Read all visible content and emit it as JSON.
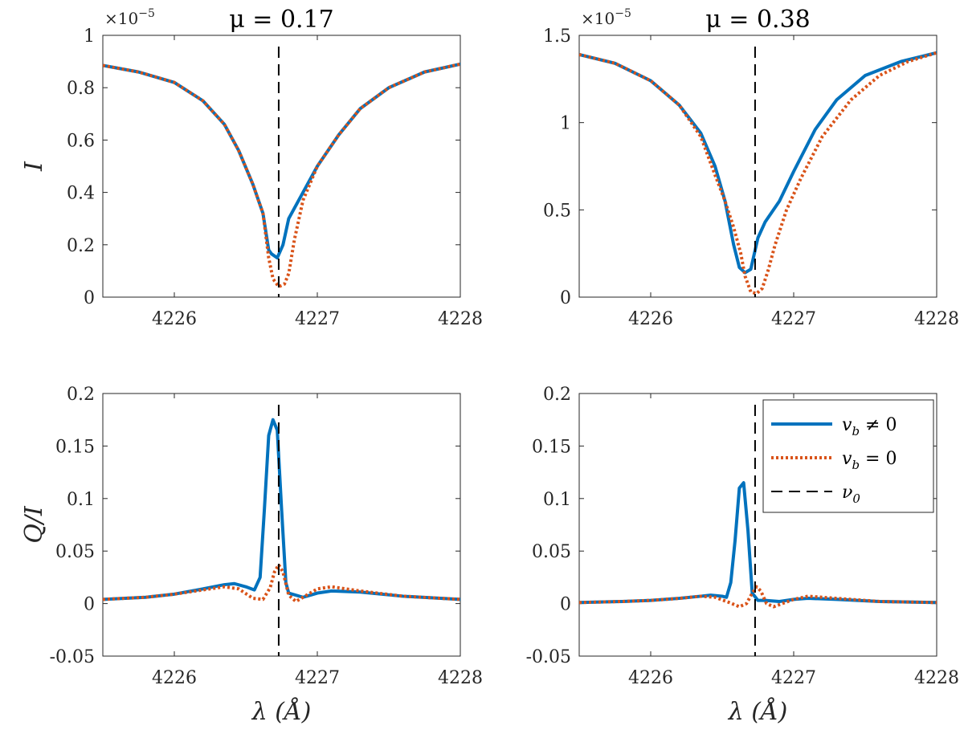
{
  "chart_data": [
    {
      "id": "I_mu017",
      "type": "line",
      "title": "μ = 0.17",
      "ylabel": "I",
      "xlabel": "",
      "multiplier": "×10",
      "multiplier_exp": "−5",
      "xlim": [
        4225.5,
        4228
      ],
      "ylim": [
        0,
        1
      ],
      "xticks": [
        4226,
        4227,
        4228
      ],
      "xticklabels": [
        "4226",
        "4227",
        "4228"
      ],
      "yticks": [
        0,
        0.2,
        0.4,
        0.6,
        0.8,
        1
      ],
      "yticklabels": [
        "0",
        "0.2",
        "0.4",
        "0.6",
        "0.8",
        "1"
      ],
      "vline": 4226.73,
      "series": [
        {
          "key": "vb_nonzero",
          "color": "#0072BD",
          "style": "solid",
          "x": [
            4225.5,
            4225.75,
            4226.0,
            4226.2,
            4226.35,
            4226.45,
            4226.55,
            4226.62,
            4226.66,
            4226.68,
            4226.72,
            4226.76,
            4226.8,
            4226.9,
            4227.0,
            4227.15,
            4227.3,
            4227.5,
            4227.75,
            4228.0
          ],
          "y": [
            0.885,
            0.86,
            0.82,
            0.75,
            0.66,
            0.56,
            0.43,
            0.32,
            0.18,
            0.165,
            0.15,
            0.2,
            0.3,
            0.4,
            0.5,
            0.62,
            0.72,
            0.8,
            0.86,
            0.89
          ]
        },
        {
          "key": "vb_zero",
          "color": "#D95319",
          "style": "dotted",
          "x": [
            4225.5,
            4225.75,
            4226.0,
            4226.2,
            4226.35,
            4226.45,
            4226.55,
            4226.62,
            4226.66,
            4226.69,
            4226.73,
            4226.77,
            4226.8,
            4226.84,
            4226.9,
            4227.0,
            4227.15,
            4227.3,
            4227.5,
            4227.75,
            4228.0
          ],
          "y": [
            0.885,
            0.86,
            0.82,
            0.75,
            0.66,
            0.56,
            0.43,
            0.32,
            0.15,
            0.07,
            0.04,
            0.05,
            0.09,
            0.22,
            0.37,
            0.5,
            0.62,
            0.72,
            0.8,
            0.86,
            0.89
          ]
        }
      ]
    },
    {
      "id": "I_mu038",
      "type": "line",
      "title": "μ = 0.38",
      "ylabel": "",
      "xlabel": "",
      "multiplier": "×10",
      "multiplier_exp": "−5",
      "xlim": [
        4225.5,
        4228
      ],
      "ylim": [
        0,
        1.5
      ],
      "xticks": [
        4226,
        4227,
        4228
      ],
      "xticklabels": [
        "4226",
        "4227",
        "4228"
      ],
      "yticks": [
        0,
        0.5,
        1,
        1.5
      ],
      "yticklabels": [
        "0",
        "0.5",
        "1",
        "1.5"
      ],
      "vline": 4226.73,
      "series": [
        {
          "key": "vb_nonzero",
          "color": "#0072BD",
          "style": "solid",
          "x": [
            4225.5,
            4225.75,
            4226.0,
            4226.2,
            4226.35,
            4226.45,
            4226.52,
            4226.58,
            4226.62,
            4226.66,
            4226.7,
            4226.75,
            4226.8,
            4226.9,
            4227.0,
            4227.15,
            4227.3,
            4227.5,
            4227.75,
            4228.0
          ],
          "y": [
            1.39,
            1.34,
            1.24,
            1.1,
            0.94,
            0.75,
            0.55,
            0.3,
            0.17,
            0.14,
            0.16,
            0.34,
            0.43,
            0.55,
            0.72,
            0.96,
            1.13,
            1.27,
            1.35,
            1.4
          ]
        },
        {
          "key": "vb_zero",
          "color": "#D95319",
          "style": "dotted",
          "x": [
            4225.5,
            4225.75,
            4226.0,
            4226.2,
            4226.35,
            4226.45,
            4226.52,
            4226.58,
            4226.63,
            4226.66,
            4226.7,
            4226.74,
            4226.78,
            4226.82,
            4226.87,
            4226.95,
            4227.05,
            4227.2,
            4227.4,
            4227.6,
            4227.8,
            4228.0
          ],
          "y": [
            1.39,
            1.34,
            1.24,
            1.1,
            0.92,
            0.7,
            0.55,
            0.4,
            0.25,
            0.12,
            0.03,
            0.02,
            0.05,
            0.15,
            0.3,
            0.5,
            0.68,
            0.92,
            1.13,
            1.27,
            1.35,
            1.4
          ]
        }
      ]
    },
    {
      "id": "QI_mu017",
      "type": "line",
      "title": "",
      "ylabel": "Q/I",
      "xlabel": "λ (Å)",
      "xlim": [
        4225.5,
        4228
      ],
      "ylim": [
        -0.05,
        0.2
      ],
      "xticks": [
        4226,
        4227,
        4228
      ],
      "xticklabels": [
        "4226",
        "4227",
        "4228"
      ],
      "yticks": [
        -0.05,
        0,
        0.05,
        0.1,
        0.15,
        0.2
      ],
      "yticklabels": [
        "-0.05",
        "0",
        "0.05",
        "0.1",
        "0.15",
        "0.2"
      ],
      "vline": 4226.73,
      "series": [
        {
          "key": "vb_nonzero",
          "color": "#0072BD",
          "style": "solid",
          "x": [
            4225.5,
            4225.8,
            4226.0,
            4226.2,
            4226.35,
            4226.42,
            4226.5,
            4226.56,
            4226.6,
            4226.63,
            4226.66,
            4226.69,
            4226.72,
            4226.75,
            4226.78,
            4226.8,
            4226.85,
            4226.9,
            4227.0,
            4227.1,
            4227.3,
            4227.6,
            4228.0
          ],
          "y": [
            0.004,
            0.006,
            0.009,
            0.014,
            0.018,
            0.019,
            0.016,
            0.013,
            0.025,
            0.09,
            0.16,
            0.175,
            0.165,
            0.09,
            0.02,
            0.01,
            0.008,
            0.006,
            0.01,
            0.012,
            0.011,
            0.007,
            0.004
          ]
        },
        {
          "key": "vb_zero",
          "color": "#D95319",
          "style": "dotted",
          "x": [
            4225.5,
            4225.8,
            4226.0,
            4226.2,
            4226.35,
            4226.45,
            4226.55,
            4226.62,
            4226.67,
            4226.7,
            4226.73,
            4226.76,
            4226.8,
            4226.85,
            4226.9,
            4227.0,
            4227.1,
            4227.3,
            4227.6,
            4228.0
          ],
          "y": [
            0.004,
            0.006,
            0.009,
            0.013,
            0.016,
            0.014,
            0.005,
            0.004,
            0.015,
            0.03,
            0.037,
            0.03,
            0.008,
            0.002,
            0.006,
            0.014,
            0.016,
            0.012,
            0.007,
            0.004
          ]
        }
      ]
    },
    {
      "id": "QI_mu038",
      "type": "line",
      "title": "",
      "ylabel": "",
      "xlabel": "λ (Å)",
      "xlim": [
        4225.5,
        4228
      ],
      "ylim": [
        -0.05,
        0.2
      ],
      "xticks": [
        4226,
        4227,
        4228
      ],
      "xticklabels": [
        "4226",
        "4227",
        "4228"
      ],
      "yticks": [
        -0.05,
        0,
        0.05,
        0.1,
        0.15,
        0.2
      ],
      "yticklabels": [
        "-0.05",
        "0",
        "0.05",
        "0.1",
        "0.15",
        "0.2"
      ],
      "vline": 4226.73,
      "series": [
        {
          "key": "vb_nonzero",
          "color": "#0072BD",
          "style": "solid",
          "x": [
            4225.5,
            4225.8,
            4226.0,
            4226.2,
            4226.35,
            4226.42,
            4226.5,
            4226.53,
            4226.56,
            4226.59,
            4226.62,
            4226.65,
            4226.68,
            4226.71,
            4226.75,
            4226.8,
            4226.9,
            4227.0,
            4227.1,
            4227.3,
            4227.6,
            4228.0
          ],
          "y": [
            0.001,
            0.002,
            0.003,
            0.005,
            0.007,
            0.008,
            0.007,
            0.006,
            0.02,
            0.06,
            0.11,
            0.115,
            0.07,
            0.01,
            0.003,
            0.003,
            0.002,
            0.004,
            0.005,
            0.004,
            0.002,
            0.001
          ]
        },
        {
          "key": "vb_zero",
          "color": "#D95319",
          "style": "dotted",
          "x": [
            4225.5,
            4225.8,
            4226.0,
            4226.2,
            4226.35,
            4226.45,
            4226.55,
            4226.62,
            4226.67,
            4226.71,
            4226.74,
            4226.77,
            4226.81,
            4226.86,
            4226.9,
            4227.0,
            4227.1,
            4227.3,
            4227.6,
            4228.0
          ],
          "y": [
            0.001,
            0.002,
            0.003,
            0.005,
            0.007,
            0.006,
            0.001,
            -0.003,
            0.0,
            0.01,
            0.016,
            0.012,
            0.0,
            -0.003,
            -0.001,
            0.004,
            0.007,
            0.005,
            0.002,
            0.001
          ]
        }
      ]
    }
  ],
  "legend": {
    "placement": "top-right",
    "entries": [
      {
        "key": "vb_nonzero",
        "label_base": "v",
        "label_sub": "b",
        "label_rest": " ≠ 0",
        "color": "#0072BD",
        "style": "solid"
      },
      {
        "key": "vb_zero",
        "label_base": "v",
        "label_sub": "b",
        "label_rest": " = 0",
        "color": "#D95319",
        "style": "dotted"
      },
      {
        "key": "nu0",
        "label_base": "ν",
        "label_sub": "0",
        "label_rest": "",
        "color": "#000000",
        "style": "dashed"
      }
    ]
  }
}
